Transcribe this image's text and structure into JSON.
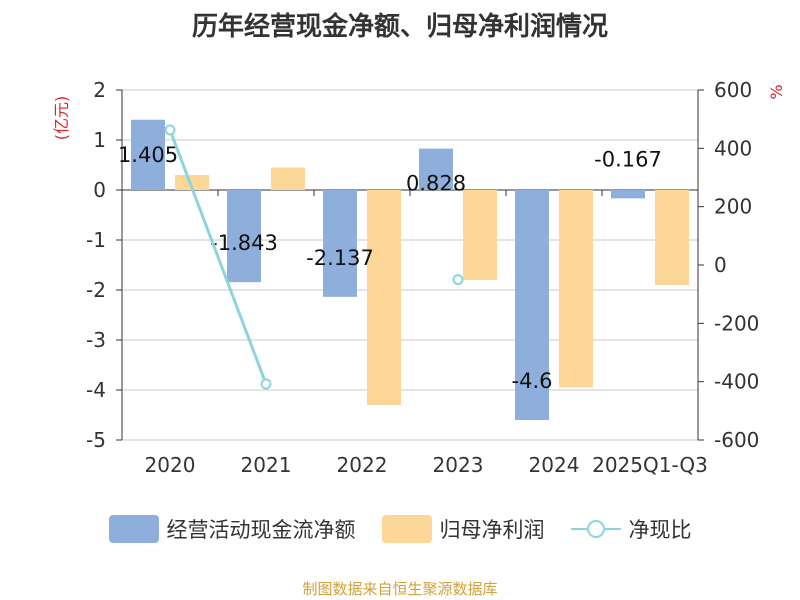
{
  "chart_data": {
    "type": "bar",
    "title": "历年经营现金净额、归母净利润情况",
    "categories": [
      "2020",
      "2021",
      "2022",
      "2023",
      "2024",
      "2025Q1-Q3"
    ],
    "series": [
      {
        "name": "经营活动现金流净额",
        "kind": "bar",
        "axis": "left",
        "color": "#8eaedc",
        "values": [
          1.405,
          -1.843,
          -2.137,
          0.828,
          -4.6,
          -0.167
        ],
        "labels": [
          "1.405",
          "-1.843",
          "-2.137",
          "0.828",
          "-4.6",
          "-0.167"
        ]
      },
      {
        "name": "归母净利润",
        "kind": "bar",
        "axis": "left",
        "color": "#fdd797",
        "values": [
          0.3,
          0.45,
          -4.3,
          -1.8,
          -3.95,
          -1.9
        ]
      },
      {
        "name": "净现比",
        "kind": "line",
        "axis": "right",
        "color": "#8dd5dc",
        "values": [
          463,
          -408,
          null,
          -50,
          null,
          null
        ]
      }
    ],
    "ylabel_left": "(亿元)",
    "ylabel_right": "%",
    "ylim_left": [
      -5,
      2
    ],
    "ylim_right": [
      -600,
      600
    ],
    "yticks_left": [
      2,
      1,
      0,
      -1,
      -2,
      -3,
      -4,
      -5
    ],
    "yticks_right": [
      600,
      400,
      200,
      0,
      -200,
      -400,
      -600
    ],
    "grid": true,
    "legend_position": "bottom"
  },
  "source_text": "制图数据来自恒生聚源数据库"
}
